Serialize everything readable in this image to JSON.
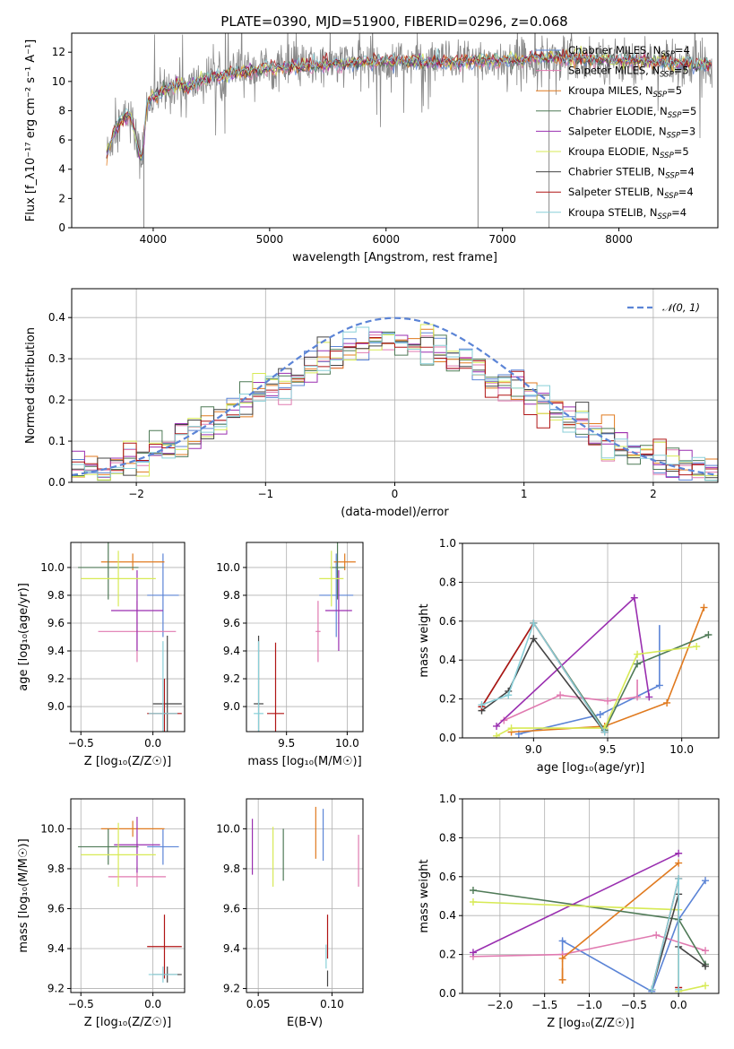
{
  "figure_title": "PLATE=0390, MJD=51900, FIBERID=0296, z=0.068",
  "colors": {
    "Chabrier MILES": "#5b84d6",
    "Salpeter MILES": "#e07ab0",
    "Kroupa MILES": "#e07a1f",
    "Chabrier ELODIE": "#4f7a57",
    "Salpeter ELODIE": "#9a2fb0",
    "Kroupa ELODIE": "#d7ea55",
    "Chabrier STELIB": "#444444",
    "Salpeter STELIB": "#b01515",
    "Kroupa STELIB": "#88cfd8"
  },
  "models": [
    "Chabrier MILES",
    "Salpeter MILES",
    "Kroupa MILES",
    "Chabrier ELODIE",
    "Salpeter ELODIE",
    "Kroupa ELODIE",
    "Chabrier STELIB",
    "Salpeter STELIB",
    "Kroupa STELIB"
  ],
  "chart_data": [
    {
      "id": "spectrum",
      "type": "line",
      "title": "PLATE=0390, MJD=51900, FIBERID=0296, z=0.068",
      "xlabel": "wavelength [Angstrom, rest frame]",
      "ylabel": "Flux [f_λ10⁻¹⁷ erg cm⁻² s⁻¹ A⁻¹]",
      "xlim": [
        3300,
        8850
      ],
      "ylim": [
        0,
        13.3
      ],
      "xticks": [
        4000,
        5000,
        6000,
        7000,
        8000
      ],
      "yticks": [
        0,
        2,
        4,
        6,
        8,
        10,
        12
      ],
      "legend_position": "right",
      "legend": [
        {
          "label": "Chabrier MILES, N",
          "sub": "SSP",
          "tail": "=4"
        },
        {
          "label": "Salpeter MILES, N",
          "sub": "SSP",
          "tail": "=5"
        },
        {
          "label": "Kroupa MILES, N",
          "sub": "SSP",
          "tail": "=5"
        },
        {
          "label": "Chabrier ELODIE, N",
          "sub": "SSP",
          "tail": "=5"
        },
        {
          "label": "Salpeter ELODIE, N",
          "sub": "SSP",
          "tail": "=3"
        },
        {
          "label": "Kroupa ELODIE, N",
          "sub": "SSP",
          "tail": "=5"
        },
        {
          "label": "Chabrier STELIB, N",
          "sub": "SSP",
          "tail": "=4"
        },
        {
          "label": "Salpeter STELIB, N",
          "sub": "SSP",
          "tail": "=4"
        },
        {
          "label": "Kroupa STELIB, N",
          "sub": "SSP",
          "tail": "=4"
        }
      ],
      "data_continuum": [
        [
          3600,
          5.0
        ],
        [
          3700,
          7.2
        ],
        [
          3800,
          7.8
        ],
        [
          3900,
          4.5
        ],
        [
          3950,
          8.5
        ],
        [
          4000,
          8.9
        ],
        [
          4100,
          9.4
        ],
        [
          4200,
          9.8
        ],
        [
          4300,
          9.6
        ],
        [
          4400,
          10.0
        ],
        [
          4500,
          10.3
        ],
        [
          4600,
          10.4
        ],
        [
          4700,
          10.6
        ],
        [
          4800,
          10.7
        ],
        [
          5000,
          10.9
        ],
        [
          5200,
          11.0
        ],
        [
          5400,
          11.1
        ],
        [
          5600,
          11.2
        ],
        [
          5800,
          11.3
        ],
        [
          6000,
          11.4
        ],
        [
          6200,
          11.4
        ],
        [
          6400,
          11.3
        ],
        [
          6600,
          11.3
        ],
        [
          6800,
          11.4
        ],
        [
          7000,
          11.4
        ],
        [
          7200,
          11.5
        ],
        [
          7400,
          11.6
        ],
        [
          7600,
          11.6
        ],
        [
          7800,
          11.5
        ],
        [
          8000,
          11.4
        ],
        [
          8200,
          11.4
        ],
        [
          8400,
          11.3
        ],
        [
          8600,
          11.2
        ],
        [
          8800,
          11.1
        ]
      ],
      "spikes_down": [
        [
          3920,
          0.0
        ],
        [
          6790,
          0.0
        ],
        [
          7400,
          0.0
        ]
      ]
    },
    {
      "id": "residuals",
      "type": "histogram",
      "xlabel": "(data-model)/error",
      "ylabel": "Normed distribution",
      "xlim": [
        -2.5,
        2.5
      ],
      "ylim": [
        0,
        0.47
      ],
      "xticks": [
        -2,
        -1,
        0,
        1,
        2
      ],
      "yticks": [
        0.0,
        0.1,
        0.2,
        0.3,
        0.4
      ],
      "legend_position": "top-right",
      "gaussian_label": "𝒩(0, 1)",
      "bins": 50
    },
    {
      "id": "age_vs_Z",
      "type": "errorbar",
      "xlabel": "Z [log₁₀(Z/Z☉)]",
      "ylabel": "age  [log₁₀(age/yr)]",
      "xlim": [
        -0.57,
        0.22
      ],
      "ylim": [
        8.82,
        10.18
      ],
      "xticks": [
        -0.5,
        0.0
      ],
      "yticks": [
        9.0,
        9.2,
        9.4,
        9.6,
        9.8,
        10.0
      ],
      "points": [
        {
          "model": "Chabrier MILES",
          "x": 0.07,
          "y": 9.8,
          "xerr": 0.11,
          "yerr": 0.3
        },
        {
          "model": "Salpeter MILES",
          "x": -0.11,
          "y": 9.54,
          "xerr": 0.27,
          "yerr": 0.22
        },
        {
          "model": "Kroupa MILES",
          "x": -0.14,
          "y": 10.04,
          "xerr": 0.22,
          "yerr": 0.06
        },
        {
          "model": "Chabrier ELODIE",
          "x": -0.31,
          "y": 10.0,
          "xerr": 0.21,
          "yerr": 0.23
        },
        {
          "model": "Salpeter ELODIE",
          "x": -0.11,
          "y": 9.69,
          "xerr": 0.18,
          "yerr": 0.29
        },
        {
          "model": "Kroupa ELODIE",
          "x": -0.24,
          "y": 9.92,
          "xerr": 0.26,
          "yerr": 0.2
        },
        {
          "model": "Chabrier STELIB",
          "x": 0.1,
          "y": 9.02,
          "xerr": 0.1,
          "yerr": 0.49
        },
        {
          "model": "Salpeter STELIB",
          "x": 0.08,
          "y": 8.95,
          "xerr": 0.12,
          "yerr": 0.25
        },
        {
          "model": "Kroupa STELIB",
          "x": 0.07,
          "y": 8.95,
          "xerr": 0.1,
          "yerr": 0.52
        }
      ]
    },
    {
      "id": "age_vs_mass",
      "type": "errorbar",
      "xlabel": "mass [log₁₀(M/M☉)]",
      "ylabel": "",
      "xlim": [
        9.17,
        10.13
      ],
      "ylim": [
        8.82,
        10.18
      ],
      "xticks": [
        9.5,
        10.0
      ],
      "yticks": [
        9.0,
        9.2,
        9.4,
        9.6,
        9.8,
        10.0
      ],
      "points": [
        {
          "model": "Chabrier MILES",
          "x": 9.91,
          "y": 9.8,
          "xerr": 0.14,
          "yerr": 0.3
        },
        {
          "model": "Salpeter MILES",
          "x": 9.76,
          "y": 9.54,
          "xerr": 0.02,
          "yerr": 0.22
        },
        {
          "model": "Kroupa MILES",
          "x": 9.98,
          "y": 10.04,
          "xerr": 0.09,
          "yerr": 0.06
        },
        {
          "model": "Chabrier ELODIE",
          "x": 9.92,
          "y": 10.0,
          "xerr": 0.06,
          "yerr": 0.23
        },
        {
          "model": "Salpeter ELODIE",
          "x": 9.93,
          "y": 9.69,
          "xerr": 0.11,
          "yerr": 0.29
        },
        {
          "model": "Kroupa ELODIE",
          "x": 9.87,
          "y": 9.92,
          "xerr": 0.1,
          "yerr": 0.2
        },
        {
          "model": "Chabrier STELIB",
          "x": 9.27,
          "y": 9.02,
          "xerr": 0.04,
          "yerr": 0.49
        },
        {
          "model": "Salpeter STELIB",
          "x": 9.41,
          "y": 8.95,
          "xerr": 0.07,
          "yerr": 0.51
        },
        {
          "model": "Kroupa STELIB",
          "x": 9.27,
          "y": 8.95,
          "xerr": 0.04,
          "yerr": 0.52
        }
      ]
    },
    {
      "id": "weight_vs_age",
      "type": "line",
      "xlabel": "age  [log₁₀(age/yr)]",
      "ylabel": "mass weight",
      "xlim": [
        8.52,
        10.25
      ],
      "ylim": [
        0,
        1.0
      ],
      "xticks": [
        9.0,
        9.5,
        10.0
      ],
      "yticks": [
        0.0,
        0.2,
        0.4,
        0.6,
        0.8,
        1.0
      ],
      "series": [
        {
          "model": "Chabrier MILES",
          "x": [
            8.9,
            9.45,
            9.85
          ],
          "y": [
            0.02,
            0.12,
            0.27
          ],
          "err": [
            [
              9.85,
              0.27,
              0.58
            ]
          ]
        },
        {
          "model": "Salpeter MILES",
          "x": [
            8.8,
            9.18,
            9.5,
            9.7
          ],
          "y": [
            0.09,
            0.22,
            0.19,
            0.21
          ],
          "err": [
            [
              9.7,
              0.21,
              0.3
            ]
          ]
        },
        {
          "model": "Kroupa MILES",
          "x": [
            8.85,
            9.48,
            9.9,
            10.15
          ],
          "y": [
            0.03,
            0.06,
            0.18,
            0.67
          ],
          "err": []
        },
        {
          "model": "Chabrier ELODIE",
          "x": [
            8.65,
            9.0,
            9.48,
            9.7,
            10.18
          ],
          "y": [
            0.16,
            0.59,
            0.04,
            0.38,
            0.53
          ],
          "err": []
        },
        {
          "model": "Salpeter ELODIE",
          "x": [
            8.75,
            9.68,
            9.78
          ],
          "y": [
            0.06,
            0.72,
            0.21
          ],
          "err": []
        },
        {
          "model": "Kroupa ELODIE",
          "x": [
            8.75,
            8.85,
            9.48,
            9.7,
            10.1
          ],
          "y": [
            0.01,
            0.05,
            0.05,
            0.43,
            0.47
          ],
          "err": []
        },
        {
          "model": "Chabrier STELIB",
          "x": [
            8.65,
            8.83,
            9.0,
            9.48
          ],
          "y": [
            0.14,
            0.24,
            0.51,
            0.03
          ],
          "err": []
        },
        {
          "model": "Salpeter STELIB",
          "x": [
            8.65,
            9.0,
            9.48
          ],
          "y": [
            0.16,
            0.59,
            0.03
          ],
          "err": []
        },
        {
          "model": "Kroupa STELIB",
          "x": [
            8.65,
            8.83,
            9.0,
            9.48
          ],
          "y": [
            0.17,
            0.22,
            0.59,
            0.03
          ],
          "err": []
        }
      ]
    },
    {
      "id": "mass_vs_Z",
      "type": "errorbar",
      "xlabel": "Z [log₁₀(Z/Z☉)]",
      "ylabel": "mass [log₁₀(M/M☉)]",
      "xlim": [
        -0.57,
        0.22
      ],
      "ylim": [
        9.18,
        10.15
      ],
      "xticks": [
        -0.5,
        0.0
      ],
      "yticks": [
        9.2,
        9.4,
        9.6,
        9.8,
        10.0
      ],
      "points": [
        {
          "model": "Chabrier MILES",
          "x": 0.07,
          "y": 9.91,
          "xerr": 0.11,
          "yerr": 0.09
        },
        {
          "model": "Salpeter MILES",
          "x": -0.11,
          "y": 9.76,
          "xerr": 0.2,
          "yerr": 0.05
        },
        {
          "model": "Kroupa MILES",
          "x": -0.14,
          "y": 10.0,
          "xerr": 0.22,
          "yerr": 0.04
        },
        {
          "model": "Chabrier ELODIE",
          "x": -0.31,
          "y": 9.91,
          "xerr": 0.21,
          "yerr": 0.09
        },
        {
          "model": "Salpeter ELODIE",
          "x": -0.11,
          "y": 9.92,
          "xerr": 0.16,
          "yerr": 0.14
        },
        {
          "model": "Kroupa ELODIE",
          "x": -0.24,
          "y": 9.87,
          "xerr": 0.26,
          "yerr": 0.16
        },
        {
          "model": "Chabrier STELIB",
          "x": 0.1,
          "y": 9.27,
          "xerr": 0.1,
          "yerr": 0.04
        },
        {
          "model": "Salpeter STELIB",
          "x": 0.08,
          "y": 9.41,
          "xerr": 0.12,
          "yerr": 0.16
        },
        {
          "model": "Kroupa STELIB",
          "x": 0.07,
          "y": 9.27,
          "xerr": 0.1,
          "yerr": 0.04
        }
      ]
    },
    {
      "id": "mass_vs_ebv",
      "type": "errorbar",
      "xlabel": "E(B-V)",
      "ylabel": "",
      "xlim": [
        0.042,
        0.121
      ],
      "ylim": [
        9.18,
        10.15
      ],
      "xticks": [
        0.05,
        0.1
      ],
      "yticks": [
        9.2,
        9.4,
        9.6,
        9.8,
        10.0
      ],
      "points": [
        {
          "model": "Chabrier MILES",
          "x": 0.094,
          "y": 9.97,
          "xerr": 0,
          "yerr": 0.13
        },
        {
          "model": "Salpeter MILES",
          "x": 0.118,
          "y": 9.84,
          "xerr": 0,
          "yerr": 0.13
        },
        {
          "model": "Kroupa MILES",
          "x": 0.089,
          "y": 9.98,
          "xerr": 0,
          "yerr": 0.13
        },
        {
          "model": "Chabrier ELODIE",
          "x": 0.067,
          "y": 9.87,
          "xerr": 0,
          "yerr": 0.13
        },
        {
          "model": "Salpeter ELODIE",
          "x": 0.046,
          "y": 9.91,
          "xerr": 0,
          "yerr": 0.14
        },
        {
          "model": "Kroupa ELODIE",
          "x": 0.06,
          "y": 9.86,
          "xerr": 0,
          "yerr": 0.15
        },
        {
          "model": "Chabrier STELIB",
          "x": 0.097,
          "y": 9.25,
          "xerr": 0,
          "yerr": 0.04
        },
        {
          "model": "Salpeter STELIB",
          "x": 0.097,
          "y": 9.46,
          "xerr": 0,
          "yerr": 0.11
        },
        {
          "model": "Kroupa STELIB",
          "x": 0.096,
          "y": 9.36,
          "xerr": 0,
          "yerr": 0.06
        }
      ]
    },
    {
      "id": "weight_vs_Z",
      "type": "line",
      "xlabel": "Z [log₁₀(Z/Z☉)]",
      "ylabel": "mass weight",
      "xlim": [
        -2.42,
        0.45
      ],
      "ylim": [
        0,
        1.0
      ],
      "xticks": [
        -2.0,
        -1.5,
        -1.0,
        -0.5,
        0.0
      ],
      "yticks": [
        0.0,
        0.2,
        0.4,
        0.6,
        0.8,
        1.0
      ],
      "series": [
        {
          "model": "Chabrier MILES",
          "x": [
            -1.3,
            -0.3,
            0.0,
            0.3
          ],
          "y": [
            0.27,
            0.01,
            0.38,
            0.58
          ],
          "err": [
            [
              -1.3,
              0.2,
              0.28
            ]
          ]
        },
        {
          "model": "Salpeter MILES",
          "x": [
            -2.3,
            -1.3,
            -0.25,
            0.3
          ],
          "y": [
            0.19,
            0.2,
            0.3,
            0.22
          ],
          "err": []
        },
        {
          "model": "Kroupa MILES",
          "x": [
            -1.3,
            -1.3,
            0.0
          ],
          "y": [
            0.07,
            0.18,
            0.67
          ],
          "err": [
            [
              -1.3,
              0.05,
              0.13
            ]
          ]
        },
        {
          "model": "Chabrier ELODIE",
          "x": [
            -2.3,
            0.0,
            0.3
          ],
          "y": [
            0.53,
            0.38,
            0.15
          ],
          "err": []
        },
        {
          "model": "Salpeter ELODIE",
          "x": [
            -2.3,
            0.0
          ],
          "y": [
            0.21,
            0.72
          ],
          "err": []
        },
        {
          "model": "Kroupa ELODIE",
          "x": [
            -2.3,
            0.0,
            0.0,
            0.3
          ],
          "y": [
            0.47,
            0.43,
            0.01,
            0.04
          ],
          "err": []
        },
        {
          "model": "Chabrier STELIB",
          "x": [
            -0.3,
            0.0,
            0.0,
            0.3
          ],
          "y": [
            0.02,
            0.51,
            0.24,
            0.14
          ],
          "err": []
        },
        {
          "model": "Salpeter STELIB",
          "x": [
            -0.3,
            0.0,
            0.0
          ],
          "y": [
            0.02,
            0.59,
            0.03
          ],
          "err": []
        },
        {
          "model": "Kroupa STELIB",
          "x": [
            -0.3,
            0.0,
            0.0
          ],
          "y": [
            0.02,
            0.59,
            0.02
          ],
          "err": []
        }
      ]
    }
  ]
}
